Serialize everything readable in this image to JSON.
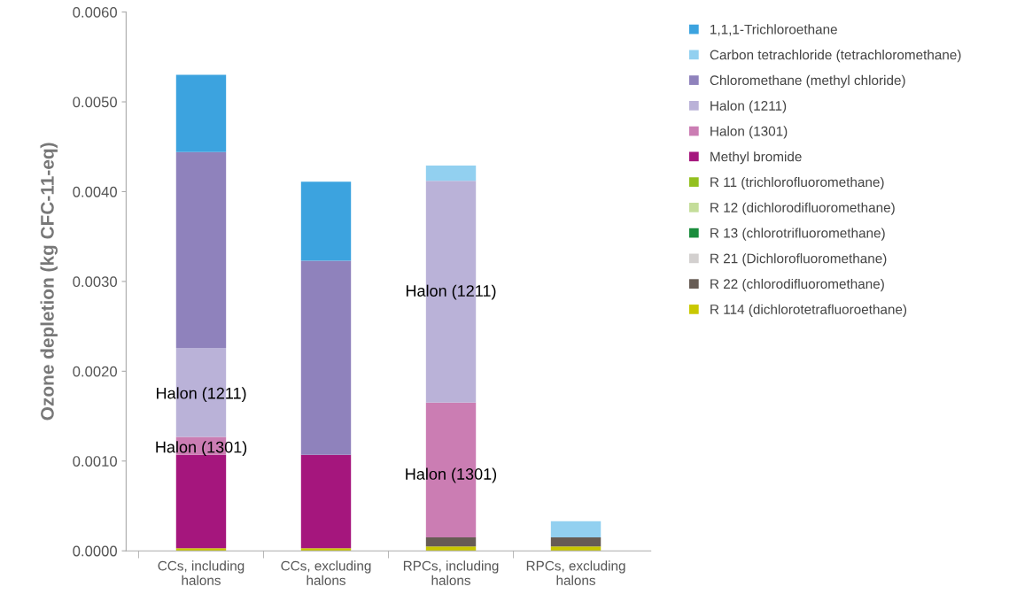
{
  "chart_data": {
    "type": "bar",
    "stacked": true,
    "ylabel": "Ozone depletion (kg CFC-11-eq)",
    "categories": [
      "CCs, including halons",
      "CCs, excluding halons",
      "RPCs, including halons",
      "RPCs, excluding halons"
    ],
    "series": [
      {
        "name": "R 114 (dichlorotetrafluoroethane)",
        "color": "#c9c800",
        "values": [
          3e-05,
          3e-05,
          5e-05,
          5e-05
        ]
      },
      {
        "name": "R 22 (chlorodifluoromethane)",
        "color": "#675c54",
        "values": [
          0,
          0,
          0.0001,
          0.0001
        ]
      },
      {
        "name": "R 21 (Dichlorofluoromethane)",
        "color": "#d3d0cf",
        "values": [
          0,
          0,
          0,
          0
        ]
      },
      {
        "name": "R 13 (chlorotrifluoromethane)",
        "color": "#1a8c3c",
        "values": [
          0,
          0,
          0,
          0
        ]
      },
      {
        "name": "R 12 (dichlorodifluoromethane)",
        "color": "#c4dd9a",
        "values": [
          0,
          0,
          0,
          0
        ]
      },
      {
        "name": "R 11 (trichlorofluoromethane)",
        "color": "#93c01f",
        "values": [
          0,
          0,
          0,
          0
        ]
      },
      {
        "name": "Methyl bromide",
        "color": "#a5167d",
        "values": [
          0.00104,
          0.00104,
          0,
          0
        ]
      },
      {
        "name": "Halon (1301)",
        "color": "#cb7db3",
        "values": [
          0.0002,
          0,
          0.0015,
          0
        ]
      },
      {
        "name": "Halon (1211)",
        "color": "#bab2d8",
        "values": [
          0.00099,
          0,
          0.00247,
          0
        ]
      },
      {
        "name": "Chloromethane (methyl chloride)",
        "color": "#8f82bc",
        "values": [
          0.00218,
          0.00216,
          0,
          0
        ]
      },
      {
        "name": "Carbon tetrachloride (tetrachloromethane)",
        "color": "#92d0f0",
        "values": [
          0,
          0,
          0.00017,
          0.00018
        ]
      },
      {
        "name": "1,1,1-Trichloroethane",
        "color": "#3ca3df",
        "values": [
          0.00086,
          0.00088,
          0,
          0
        ]
      }
    ],
    "ylim": [
      0,
      0.006
    ],
    "yticks": [
      {
        "value": 0,
        "label": "0.0000"
      },
      {
        "value": 0.001,
        "label": "0.0010"
      },
      {
        "value": 0.002,
        "label": "0.0020"
      },
      {
        "value": 0.003,
        "label": "0.0030"
      },
      {
        "value": 0.004,
        "label": "0.0040"
      },
      {
        "value": 0.005,
        "label": "0.0050"
      },
      {
        "value": 0.006,
        "label": "0.0060"
      }
    ],
    "annotations": [
      "Halon (1211)",
      "Halon (1301)",
      "Halon (1211)",
      "Halon (1301)"
    ],
    "legend": "right",
    "grid": false
  }
}
